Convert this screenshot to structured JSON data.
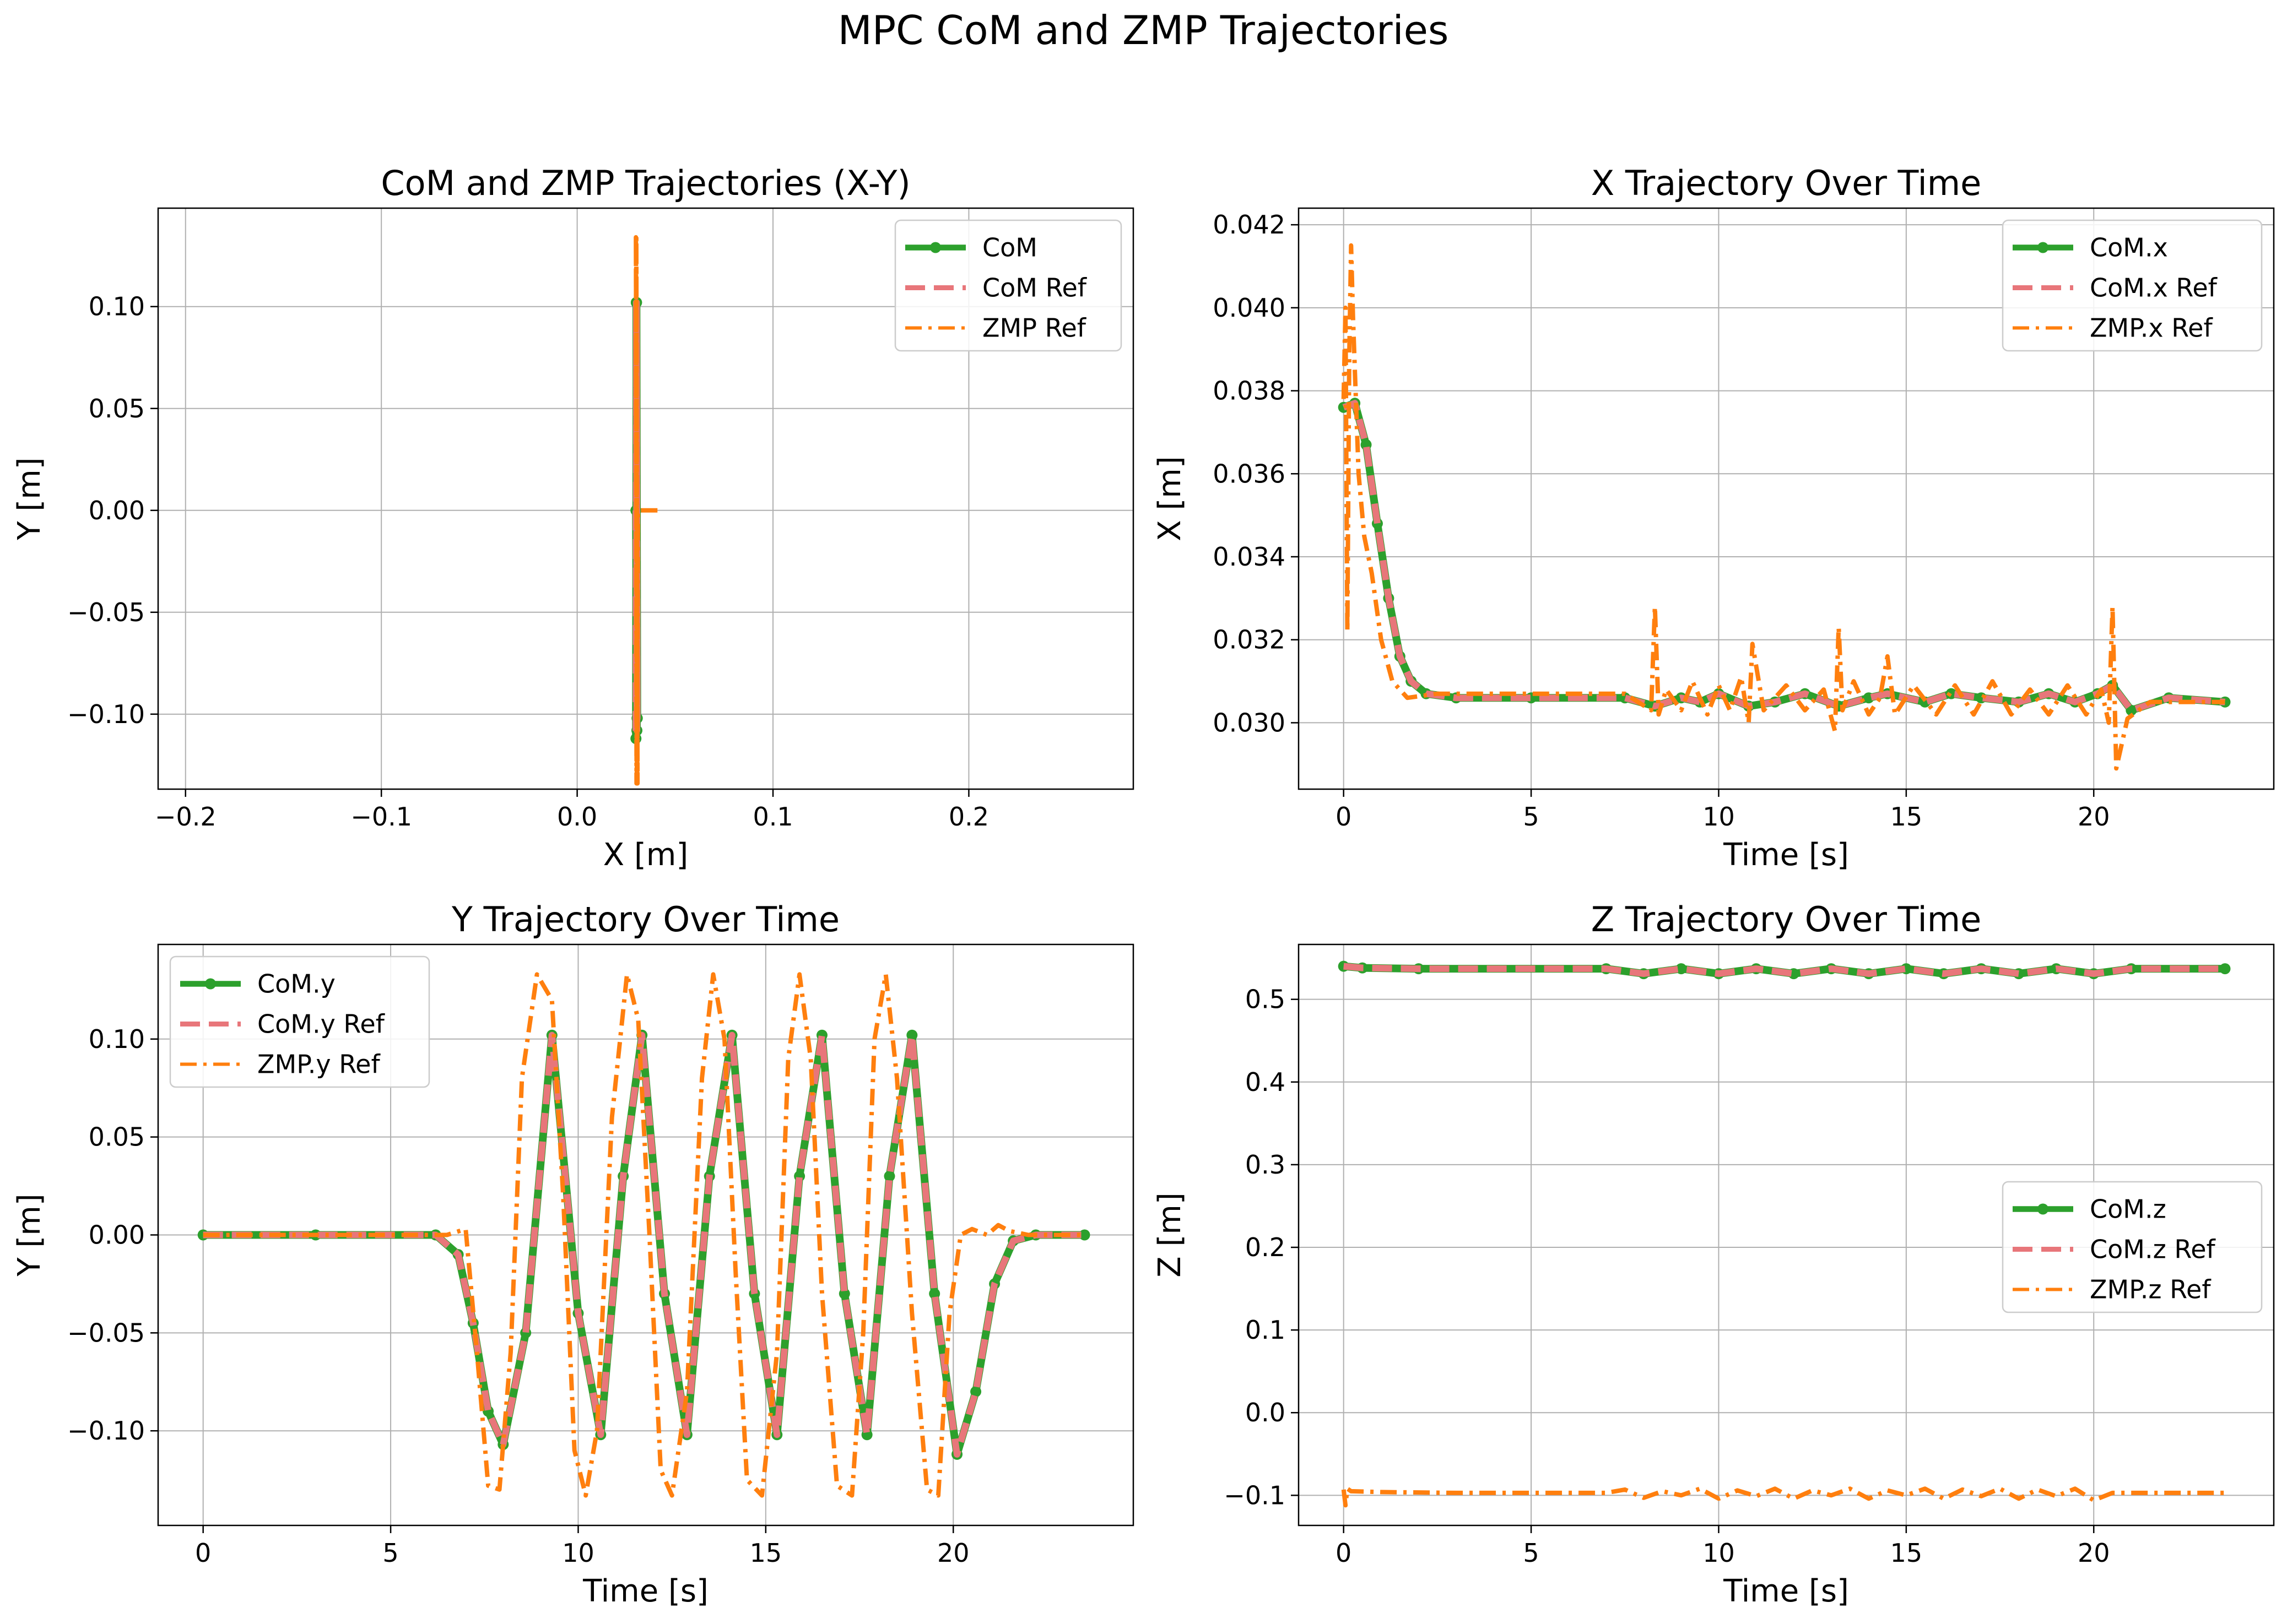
{
  "figure_title": "MPC CoM and ZMP Trajectories",
  "colors": {
    "com": "#2ca02c",
    "com_ref": "#e8767a",
    "zmp_ref": "#ff7f0e",
    "grid": "#b0b0b0",
    "axis": "#000000"
  },
  "chart_data": [
    {
      "type": "line",
      "title": "CoM and ZMP Trajectories (X-Y)",
      "xlabel": "X [m]",
      "ylabel": "Y [m]",
      "xlim": [
        -0.214,
        0.284
      ],
      "ylim": [
        -0.1368,
        0.1483
      ],
      "xticks": [
        -0.2,
        -0.1,
        0.0,
        0.1,
        0.2
      ],
      "xtick_labels": [
        "−0.2",
        "−0.1",
        "0.0",
        "0.1",
        "0.2"
      ],
      "yticks": [
        -0.1,
        -0.05,
        0.0,
        0.05,
        0.1
      ],
      "ytick_labels": [
        "−0.10",
        "−0.05",
        "0.00",
        "0.05",
        "0.10"
      ],
      "grid": true,
      "legend_position": "top-right",
      "series": [
        {
          "name": "CoM",
          "style": "com",
          "x": [
            0.03,
            0.0305,
            0.0302,
            0.0306,
            0.0303,
            0.0307,
            0.0302,
            0.0306,
            0.0303,
            0.03
          ],
          "y": [
            0.0,
            -0.108,
            0.102,
            -0.102,
            0.102,
            -0.102,
            0.102,
            -0.102,
            0.102,
            -0.112
          ]
        },
        {
          "name": "CoM Ref",
          "style": "com_ref",
          "x": [
            0.03,
            0.0305,
            0.0302,
            0.0306,
            0.0303,
            0.0307,
            0.0302,
            0.0306,
            0.0303,
            0.03
          ],
          "y": [
            0.0,
            -0.108,
            0.102,
            -0.102,
            0.102,
            -0.102,
            0.102,
            -0.102,
            0.102,
            -0.112
          ]
        },
        {
          "name": "ZMP Ref",
          "style": "zmp_ref",
          "x": [
            0.041,
            0.033,
            0.031,
            0.0305,
            0.03,
            0.0308,
            0.0302,
            0.0306,
            0.03,
            0.0308,
            0.0302,
            0.0303,
            0.0306
          ],
          "y": [
            0.0,
            0.0,
            0.0,
            -0.135,
            0.135,
            -0.134,
            0.134,
            -0.134,
            0.134,
            -0.134,
            0.134,
            -0.134,
            0.0
          ]
        }
      ]
    },
    {
      "type": "line",
      "title": "X Trajectory Over Time",
      "xlabel": "Time [s]",
      "ylabel": "X [m]",
      "xlim": [
        -1.2,
        24.8
      ],
      "ylim": [
        0.0284,
        0.0424
      ],
      "xticks": [
        0,
        5,
        10,
        15,
        20
      ],
      "xtick_labels": [
        "0",
        "5",
        "10",
        "15",
        "20"
      ],
      "yticks": [
        0.03,
        0.032,
        0.034,
        0.036,
        0.038,
        0.04,
        0.042
      ],
      "ytick_labels": [
        "0.030",
        "0.032",
        "0.034",
        "0.036",
        "0.038",
        "0.040",
        "0.042"
      ],
      "grid": true,
      "legend_position": "top-right",
      "series": [
        {
          "name": "CoM.x",
          "style": "com",
          "x": [
            0.0,
            0.3,
            0.6,
            0.9,
            1.2,
            1.5,
            1.8,
            2.2,
            3.0,
            5.0,
            7.5,
            8.3,
            9.0,
            9.5,
            10.0,
            10.8,
            11.5,
            12.3,
            13.2,
            14.0,
            14.5,
            15.5,
            16.2,
            17.0,
            18.0,
            18.8,
            19.5,
            20.1,
            20.5,
            21.0,
            22.0,
            23.5
          ],
          "y": [
            0.0376,
            0.0377,
            0.0367,
            0.0348,
            0.033,
            0.0316,
            0.031,
            0.0307,
            0.0306,
            0.0306,
            0.0306,
            0.0304,
            0.0306,
            0.0305,
            0.0307,
            0.0304,
            0.0305,
            0.0307,
            0.0304,
            0.0306,
            0.0307,
            0.0305,
            0.0307,
            0.0306,
            0.0305,
            0.0307,
            0.0305,
            0.0307,
            0.0309,
            0.0303,
            0.0306,
            0.0305
          ]
        },
        {
          "name": "CoM.x Ref",
          "style": "com_ref",
          "x": [
            0.0,
            0.3,
            0.6,
            0.9,
            1.2,
            1.5,
            1.8,
            2.2,
            3.0,
            5.0,
            7.5,
            8.3,
            9.0,
            9.5,
            10.0,
            10.8,
            11.5,
            12.3,
            13.2,
            14.0,
            14.5,
            15.5,
            16.2,
            17.0,
            18.0,
            18.8,
            19.5,
            20.1,
            20.5,
            21.0,
            22.0,
            23.5
          ],
          "y": [
            0.0376,
            0.0377,
            0.0367,
            0.0348,
            0.033,
            0.0316,
            0.031,
            0.0307,
            0.0306,
            0.0306,
            0.0306,
            0.0304,
            0.0306,
            0.0305,
            0.0307,
            0.0304,
            0.0305,
            0.0307,
            0.0304,
            0.0306,
            0.0307,
            0.0305,
            0.0307,
            0.0306,
            0.0305,
            0.0307,
            0.0305,
            0.0307,
            0.0309,
            0.0303,
            0.0306,
            0.0305
          ]
        },
        {
          "name": "ZMP.x Ref",
          "style": "zmp_ref",
          "x": [
            0.0,
            0.05,
            0.1,
            0.15,
            0.2,
            0.25,
            0.3,
            0.4,
            0.55,
            0.75,
            1.0,
            1.3,
            1.7,
            2.5,
            5.0,
            7.5,
            8.2,
            8.3,
            8.4,
            8.6,
            9.0,
            9.3,
            9.7,
            10.0,
            10.3,
            10.6,
            10.8,
            10.9,
            11.2,
            11.8,
            12.3,
            12.8,
            13.1,
            13.2,
            13.3,
            13.6,
            14.0,
            14.3,
            14.5,
            14.7,
            15.2,
            15.8,
            16.3,
            16.8,
            17.3,
            17.8,
            18.3,
            18.8,
            19.3,
            19.8,
            20.2,
            20.4,
            20.5,
            20.6,
            20.9,
            21.5,
            23.5
          ],
          "y": [
            0.0378,
            0.04,
            0.0322,
            0.0388,
            0.0415,
            0.0398,
            0.0385,
            0.036,
            0.0345,
            0.0336,
            0.032,
            0.031,
            0.0306,
            0.0307,
            0.0307,
            0.0307,
            0.0303,
            0.0328,
            0.0302,
            0.0308,
            0.0303,
            0.031,
            0.0302,
            0.0309,
            0.0303,
            0.0311,
            0.03,
            0.0319,
            0.0303,
            0.0309,
            0.0303,
            0.0308,
            0.0298,
            0.0323,
            0.0303,
            0.031,
            0.0302,
            0.0306,
            0.0316,
            0.0302,
            0.0309,
            0.0302,
            0.0309,
            0.0302,
            0.031,
            0.0302,
            0.0308,
            0.0302,
            0.0309,
            0.0302,
            0.0308,
            0.03,
            0.0328,
            0.0289,
            0.0301,
            0.0305,
            0.0305
          ]
        }
      ]
    },
    {
      "type": "line",
      "title": "Y Trajectory Over Time",
      "xlabel": "Time [s]",
      "ylabel": "Y [m]",
      "xlim": [
        -1.2,
        24.8
      ],
      "ylim": [
        -0.1483,
        0.1483
      ],
      "xticks": [
        0,
        5,
        10,
        15,
        20
      ],
      "xtick_labels": [
        "0",
        "5",
        "10",
        "15",
        "20"
      ],
      "yticks": [
        -0.1,
        -0.05,
        0.0,
        0.05,
        0.1
      ],
      "ytick_labels": [
        "−0.10",
        "−0.05",
        "0.00",
        "0.05",
        "0.10"
      ],
      "grid": true,
      "legend_position": "top-left",
      "series": [
        {
          "name": "CoM.y",
          "style": "com",
          "x": [
            0.0,
            3.0,
            6.2,
            6.8,
            7.2,
            7.6,
            8.0,
            8.6,
            9.3,
            10.0,
            10.6,
            11.2,
            11.7,
            12.3,
            12.9,
            13.5,
            14.1,
            14.7,
            15.3,
            15.9,
            16.5,
            17.1,
            17.7,
            18.3,
            18.9,
            19.5,
            20.1,
            20.6,
            21.1,
            21.6,
            22.2,
            23.5
          ],
          "y": [
            0.0,
            0.0,
            0.0,
            -0.01,
            -0.045,
            -0.09,
            -0.107,
            -0.05,
            0.102,
            -0.04,
            -0.102,
            0.03,
            0.102,
            -0.03,
            -0.102,
            0.03,
            0.102,
            -0.03,
            -0.102,
            0.03,
            0.102,
            -0.03,
            -0.102,
            0.03,
            0.102,
            -0.03,
            -0.112,
            -0.08,
            -0.025,
            -0.003,
            0.0,
            0.0
          ]
        },
        {
          "name": "CoM.y Ref",
          "style": "com_ref",
          "x": [
            0.0,
            3.0,
            6.2,
            6.8,
            7.2,
            7.6,
            8.0,
            8.6,
            9.3,
            10.0,
            10.6,
            11.2,
            11.7,
            12.3,
            12.9,
            13.5,
            14.1,
            14.7,
            15.3,
            15.9,
            16.5,
            17.1,
            17.7,
            18.3,
            18.9,
            19.5,
            20.1,
            20.6,
            21.1,
            21.6,
            22.2,
            23.5
          ],
          "y": [
            0.0,
            0.0,
            0.0,
            -0.01,
            -0.045,
            -0.09,
            -0.107,
            -0.05,
            0.102,
            -0.04,
            -0.102,
            0.03,
            0.102,
            -0.03,
            -0.102,
            0.03,
            0.102,
            -0.03,
            -0.102,
            0.03,
            0.102,
            -0.03,
            -0.102,
            0.03,
            0.102,
            -0.03,
            -0.112,
            -0.08,
            -0.025,
            -0.003,
            0.0,
            0.0
          ]
        },
        {
          "name": "ZMP.y Ref",
          "style": "zmp_ref",
          "x": [
            0.0,
            3.0,
            6.5,
            7.0,
            7.3,
            7.6,
            7.9,
            8.2,
            8.5,
            8.9,
            9.3,
            9.6,
            9.9,
            10.2,
            10.5,
            10.9,
            11.3,
            11.6,
            11.9,
            12.2,
            12.5,
            12.9,
            13.3,
            13.6,
            13.9,
            14.2,
            14.5,
            14.9,
            15.3,
            15.6,
            15.9,
            16.2,
            16.5,
            16.9,
            17.3,
            17.6,
            17.9,
            18.2,
            18.5,
            18.9,
            19.3,
            19.6,
            19.9,
            20.2,
            20.5,
            20.9,
            21.2,
            21.5,
            22.0,
            23.5
          ],
          "y": [
            0.0,
            0.0,
            0.0,
            0.003,
            -0.06,
            -0.128,
            -0.13,
            -0.06,
            0.08,
            0.133,
            0.12,
            0.02,
            -0.11,
            -0.133,
            -0.1,
            0.06,
            0.133,
            0.11,
            0.0,
            -0.12,
            -0.133,
            -0.08,
            0.08,
            0.133,
            0.1,
            -0.02,
            -0.125,
            -0.133,
            -0.06,
            0.09,
            0.133,
            0.09,
            -0.03,
            -0.128,
            -0.133,
            -0.05,
            0.1,
            0.133,
            0.08,
            -0.04,
            -0.13,
            -0.133,
            -0.04,
            0.0,
            0.003,
            0.0,
            0.005,
            0.002,
            0.0,
            0.0
          ]
        }
      ]
    },
    {
      "type": "line",
      "title": "Z Trajectory Over Time",
      "xlabel": "Time [s]",
      "ylabel": "Z [m]",
      "xlim": [
        -1.2,
        24.8
      ],
      "ylim": [
        -0.1364,
        0.5664
      ],
      "xticks": [
        0,
        5,
        10,
        15,
        20
      ],
      "xtick_labels": [
        "0",
        "5",
        "10",
        "15",
        "20"
      ],
      "yticks": [
        -0.1,
        0.0,
        0.1,
        0.2,
        0.3,
        0.4,
        0.5
      ],
      "ytick_labels": [
        "−0.1",
        "0.0",
        "0.1",
        "0.2",
        "0.3",
        "0.4",
        "0.5"
      ],
      "grid": true,
      "legend_position": "center-right",
      "series": [
        {
          "name": "CoM.z",
          "style": "com",
          "x": [
            0.0,
            0.5,
            2.0,
            7.0,
            8.0,
            9.0,
            10.0,
            11.0,
            12.0,
            13.0,
            14.0,
            15.0,
            16.0,
            17.0,
            18.0,
            19.0,
            20.0,
            21.0,
            23.5
          ],
          "y": [
            0.54,
            0.538,
            0.537,
            0.537,
            0.531,
            0.537,
            0.531,
            0.537,
            0.531,
            0.537,
            0.531,
            0.537,
            0.531,
            0.537,
            0.531,
            0.537,
            0.531,
            0.537,
            0.537
          ]
        },
        {
          "name": "CoM.z Ref",
          "style": "com_ref",
          "x": [
            0.0,
            0.5,
            2.0,
            7.0,
            8.0,
            9.0,
            10.0,
            11.0,
            12.0,
            13.0,
            14.0,
            15.0,
            16.0,
            17.0,
            18.0,
            19.0,
            20.0,
            21.0,
            23.5
          ],
          "y": [
            0.54,
            0.538,
            0.537,
            0.537,
            0.531,
            0.537,
            0.531,
            0.537,
            0.531,
            0.537,
            0.531,
            0.537,
            0.531,
            0.537,
            0.531,
            0.537,
            0.531,
            0.537,
            0.537
          ]
        },
        {
          "name": "ZMP.z Ref",
          "style": "zmp_ref",
          "x": [
            0.0,
            0.05,
            0.1,
            0.2,
            1.0,
            3.0,
            7.0,
            7.5,
            8.0,
            8.5,
            9.0,
            9.5,
            10.0,
            10.5,
            11.0,
            11.5,
            12.0,
            12.5,
            13.0,
            13.5,
            14.0,
            14.5,
            15.0,
            15.5,
            16.0,
            16.5,
            17.0,
            17.5,
            18.0,
            18.5,
            19.0,
            19.5,
            20.0,
            20.5,
            21.0,
            23.5
          ],
          "y": [
            -0.093,
            -0.112,
            -0.092,
            -0.095,
            -0.096,
            -0.097,
            -0.097,
            -0.093,
            -0.103,
            -0.095,
            -0.1,
            -0.092,
            -0.104,
            -0.094,
            -0.101,
            -0.092,
            -0.104,
            -0.094,
            -0.1,
            -0.092,
            -0.104,
            -0.094,
            -0.1,
            -0.092,
            -0.104,
            -0.093,
            -0.101,
            -0.092,
            -0.104,
            -0.093,
            -0.101,
            -0.092,
            -0.106,
            -0.097,
            -0.097,
            -0.097
          ]
        }
      ]
    }
  ]
}
